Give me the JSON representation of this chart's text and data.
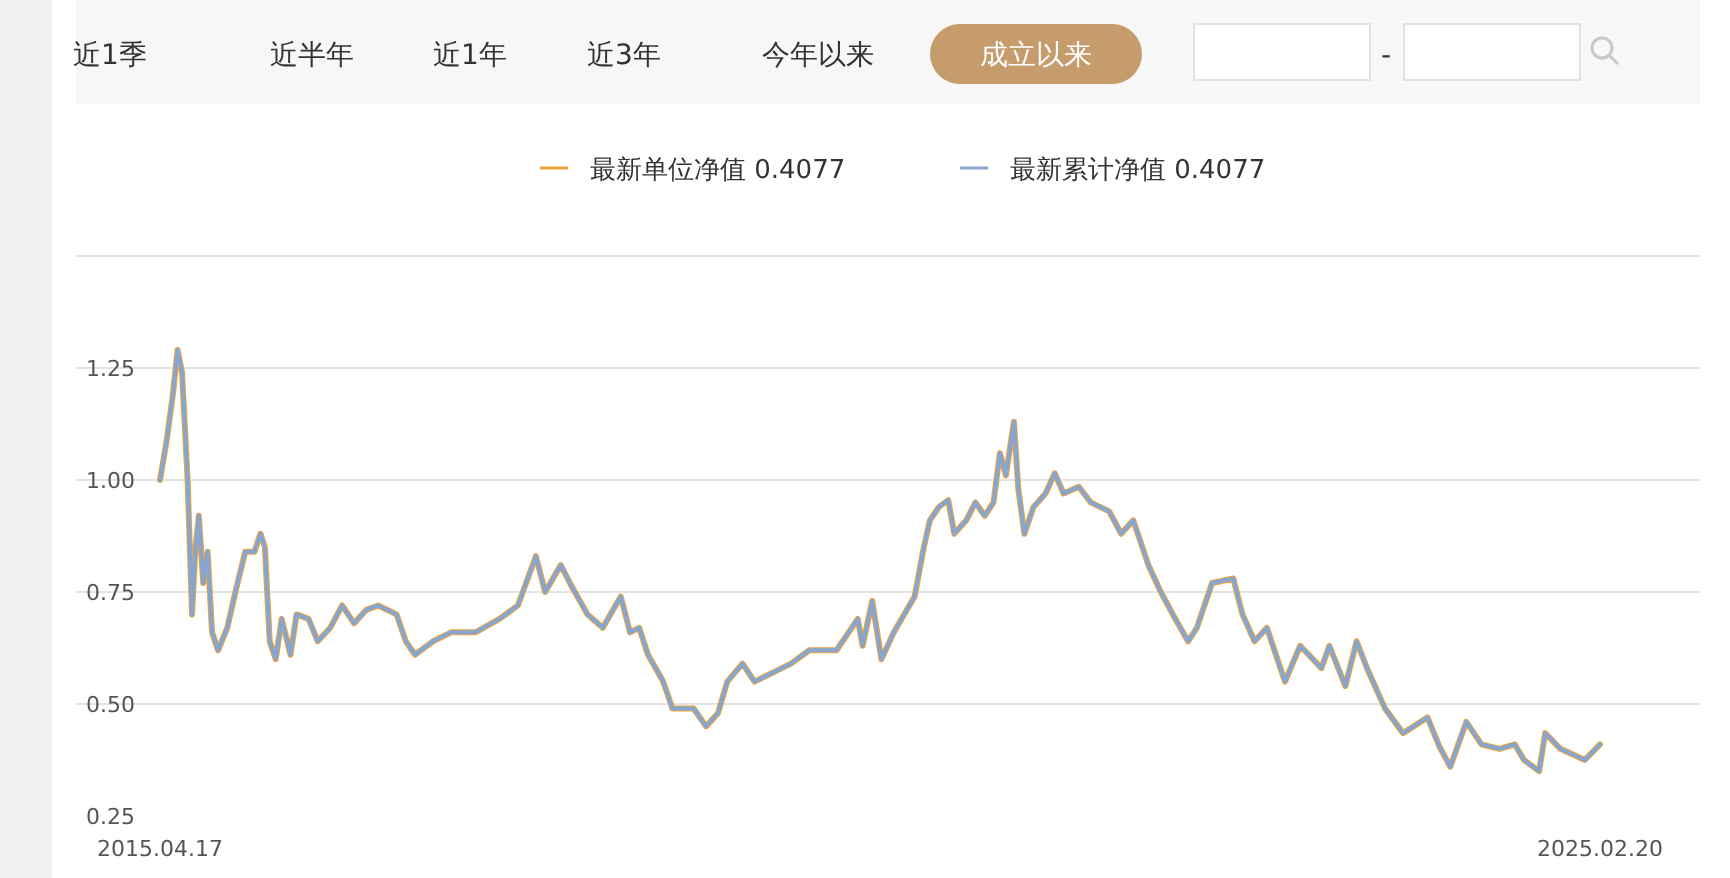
{
  "chart_data": {
    "type": "line",
    "x": [
      "2015-04-17",
      "2015-05-04",
      "2015-05-19",
      "2015-05-31",
      "2015-06-11",
      "2015-06-25",
      "2015-07-06",
      "2015-07-14",
      "2015-07-23",
      "2015-08-03",
      "2015-08-14",
      "2015-08-25",
      "2015-09-09",
      "2015-10-02",
      "2015-10-25",
      "2015-11-16",
      "2015-12-09",
      "2015-12-24",
      "2016-01-04",
      "2016-01-16",
      "2016-01-31",
      "2016-02-15",
      "2016-03-08",
      "2016-03-23",
      "2016-04-22",
      "2016-05-15",
      "2016-06-15",
      "2016-07-15",
      "2016-08-14",
      "2016-09-13",
      "2016-10-13",
      "2016-11-28",
      "2016-12-21",
      "2017-01-13",
      "2017-02-27",
      "2017-04-13",
      "2017-06-13",
      "2017-08-12",
      "2017-09-27",
      "2017-11-11",
      "2017-12-04",
      "2018-01-12",
      "2018-02-10",
      "2018-03-20",
      "2018-04-27",
      "2018-06-11",
      "2018-07-04",
      "2018-07-27",
      "2018-08-18",
      "2018-09-25",
      "2018-10-18",
      "2018-12-10",
      "2019-01-10",
      "2019-02-09",
      "2019-03-04",
      "2019-04-11",
      "2019-05-11",
      "2019-06-26",
      "2019-08-10",
      "2019-09-25",
      "2019-12-02",
      "2020-01-24",
      "2020-02-05",
      "2020-02-29",
      "2020-03-23",
      "2020-04-23",
      "2020-06-14",
      "2020-07-07",
      "2020-07-22",
      "2020-08-14",
      "2020-09-06",
      "2020-09-21",
      "2020-10-21",
      "2020-11-13",
      "2020-12-06",
      "2020-12-28",
      "2021-01-13",
      "2021-01-28",
      "2021-02-17",
      "2021-02-28",
      "2021-03-15",
      "2021-04-07",
      "2021-05-07",
      "2021-05-30",
      "2021-06-21",
      "2021-07-29",
      "2021-08-28",
      "2021-10-13",
      "2021-11-12",
      "2021-12-12",
      "2022-01-19",
      "2022-02-19",
      "2022-03-21",
      "2022-04-28",
      "2022-05-20",
      "2022-06-27",
      "2022-08-19",
      "2022-09-11",
      "2022-10-11",
      "2022-11-11",
      "2022-12-26",
      "2023-02-02",
      "2023-03-27",
      "2023-04-16",
      "2023-05-26",
      "2023-06-23",
      "2023-07-19",
      "2023-09-02",
      "2023-10-17",
      "2023-12-17",
      "2024-01-16",
      "2024-02-12",
      "2024-03-23",
      "2024-04-30",
      "2024-06-14",
      "2024-07-22",
      "2024-08-14",
      "2024-09-21",
      "2024-10-06",
      "2024-11-13",
      "2025-01-13",
      "2025-02-20"
    ],
    "series": [
      {
        "name": "最新单位净值 0.4077",
        "color": "#f0a33a",
        "values": [
          1.0,
          1.09,
          1.19,
          1.29,
          1.24,
          1.0,
          0.7,
          0.84,
          0.92,
          0.77,
          0.84,
          0.66,
          0.62,
          0.67,
          0.76,
          0.84,
          0.84,
          0.88,
          0.85,
          0.64,
          0.6,
          0.69,
          0.61,
          0.7,
          0.69,
          0.64,
          0.67,
          0.72,
          0.68,
          0.71,
          0.72,
          0.7,
          0.64,
          0.61,
          0.64,
          0.66,
          0.66,
          0.69,
          0.72,
          0.83,
          0.75,
          0.81,
          0.76,
          0.7,
          0.67,
          0.74,
          0.66,
          0.67,
          0.61,
          0.55,
          0.49,
          0.49,
          0.45,
          0.48,
          0.55,
          0.59,
          0.55,
          0.57,
          0.59,
          0.62,
          0.62,
          0.69,
          0.63,
          0.73,
          0.6,
          0.66,
          0.74,
          0.85,
          0.91,
          0.94,
          0.955,
          0.88,
          0.91,
          0.95,
          0.92,
          0.95,
          1.06,
          1.01,
          1.13,
          0.98,
          0.88,
          0.94,
          0.97,
          1.015,
          0.97,
          0.985,
          0.95,
          0.93,
          0.88,
          0.91,
          0.81,
          0.75,
          0.7,
          0.64,
          0.67,
          0.77,
          0.78,
          0.7,
          0.64,
          0.67,
          0.55,
          0.63,
          0.58,
          0.63,
          0.54,
          0.64,
          0.58,
          0.49,
          0.435,
          0.47,
          0.405,
          0.36,
          0.46,
          0.41,
          0.4,
          0.41,
          0.375,
          0.35,
          0.435,
          0.4,
          0.375,
          0.41
        ]
      },
      {
        "name": "最新累计净值 0.4077",
        "color": "#86a6d2",
        "values": [
          1.0,
          1.09,
          1.19,
          1.29,
          1.24,
          1.0,
          0.7,
          0.84,
          0.92,
          0.77,
          0.84,
          0.66,
          0.62,
          0.67,
          0.76,
          0.84,
          0.84,
          0.88,
          0.85,
          0.64,
          0.6,
          0.69,
          0.61,
          0.7,
          0.69,
          0.64,
          0.67,
          0.72,
          0.68,
          0.71,
          0.72,
          0.7,
          0.64,
          0.61,
          0.64,
          0.66,
          0.66,
          0.69,
          0.72,
          0.83,
          0.75,
          0.81,
          0.76,
          0.7,
          0.67,
          0.74,
          0.66,
          0.67,
          0.61,
          0.55,
          0.49,
          0.49,
          0.45,
          0.48,
          0.55,
          0.59,
          0.55,
          0.57,
          0.59,
          0.62,
          0.62,
          0.69,
          0.63,
          0.73,
          0.6,
          0.66,
          0.74,
          0.85,
          0.91,
          0.94,
          0.955,
          0.88,
          0.91,
          0.95,
          0.92,
          0.95,
          1.06,
          1.01,
          1.13,
          0.98,
          0.88,
          0.94,
          0.97,
          1.015,
          0.97,
          0.985,
          0.95,
          0.93,
          0.88,
          0.91,
          0.81,
          0.75,
          0.7,
          0.64,
          0.67,
          0.77,
          0.78,
          0.7,
          0.64,
          0.67,
          0.55,
          0.63,
          0.58,
          0.63,
          0.54,
          0.64,
          0.58,
          0.49,
          0.435,
          0.47,
          0.405,
          0.36,
          0.46,
          0.41,
          0.4,
          0.41,
          0.375,
          0.35,
          0.435,
          0.4,
          0.375,
          0.41
        ]
      }
    ],
    "xlim": [
      "2015-04-17",
      "2025-02-20"
    ],
    "xticks": [
      {
        "value": "2015-04-17",
        "label": "2015.04.17"
      },
      {
        "value": "2025-02-20",
        "label": "2025.02.20"
      }
    ],
    "ylim": [
      0.25,
      1.5
    ],
    "yticks": [
      0.25,
      {
        "value": 0.5,
        "label": "0.50"
      },
      0.75,
      {
        "value": 1.0,
        "label": "1.00"
      },
      1.25,
      {
        "value": 1.5,
        "label": null
      }
    ],
    "grid": "y",
    "legend": "top",
    "annotations": [
      "近1季",
      "近半年",
      "近1年",
      "近3年",
      "今年以来",
      "成立以来",
      "-"
    ]
  }
}
